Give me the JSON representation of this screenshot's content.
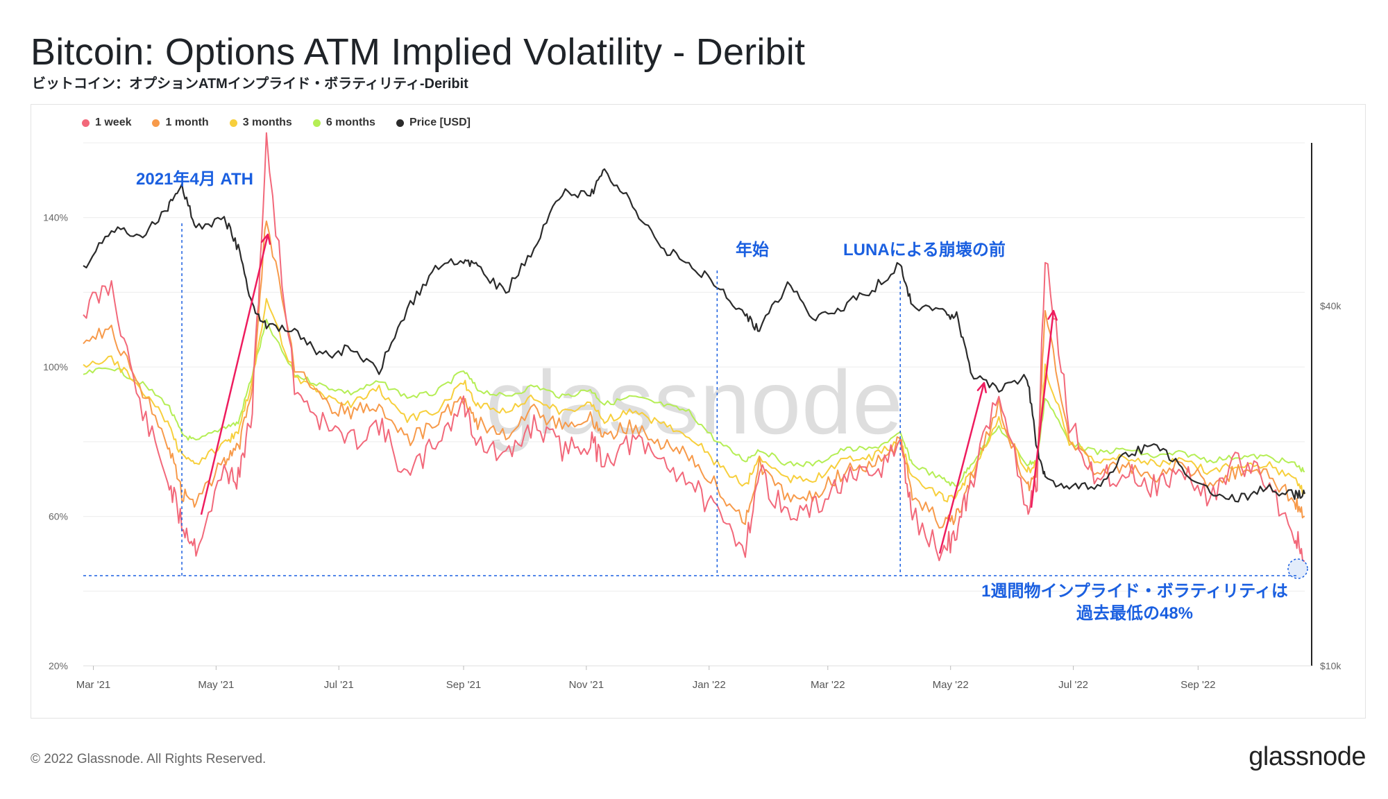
{
  "header": {
    "title": "Bitcoin: Options ATM Implied Volatility - Deribit",
    "subtitle": "ビットコイン：オプションATMインプライド・ボラティリティ-Deribit"
  },
  "footer": {
    "copyright": "© 2022 Glassnode. All Rights Reserved.",
    "brand": "glassnode",
    "watermark": "glassnode"
  },
  "annotations": {
    "ath": "2021年4月 ATH",
    "new_year": "年始",
    "luna": "LUNAによる崩壊の前",
    "low_line1": "1週間物インプライド・ボラティリティは",
    "low_line2": "過去最低の48%"
  },
  "colors": {
    "w1": "#f2687a",
    "m1": "#f79a4a",
    "m3": "#f7cf3c",
    "m6": "#b5ee55",
    "price": "#2b2b2b",
    "annotation": "#1a5fe0",
    "arrow": "#ee1c5e"
  },
  "chart_data": {
    "type": "line",
    "legend": [
      "1 week",
      "1 month",
      "3 months",
      "6 months",
      "Price [USD]"
    ],
    "legend_position": "top-left",
    "x_ticks": [
      "Mar '21",
      "May '21",
      "Jul '21",
      "Sep '21",
      "Nov '21",
      "Jan '22",
      "Mar '22",
      "May '22",
      "Jul '22",
      "Sep '22"
    ],
    "y_left_ticks": [
      "20%",
      "60%",
      "100%",
      "140%"
    ],
    "y_left_range": [
      20,
      160
    ],
    "y_right_ticks": [
      "$10k",
      "$40k"
    ],
    "y_right_scale": "log",
    "y_right_range": [
      10000,
      75000
    ],
    "grid": true,
    "x": [
      "2021-02-24",
      "2021-03-10",
      "2021-03-24",
      "2021-04-07",
      "2021-04-14",
      "2021-04-21",
      "2021-05-05",
      "2021-05-12",
      "2021-05-19",
      "2021-05-26",
      "2021-06-09",
      "2021-06-23",
      "2021-07-07",
      "2021-07-21",
      "2021-08-04",
      "2021-08-18",
      "2021-09-01",
      "2021-09-08",
      "2021-09-22",
      "2021-10-06",
      "2021-10-20",
      "2021-11-03",
      "2021-11-10",
      "2021-11-24",
      "2021-12-08",
      "2021-12-22",
      "2022-01-05",
      "2022-01-19",
      "2022-01-26",
      "2022-02-09",
      "2022-02-23",
      "2022-03-09",
      "2022-03-23",
      "2022-04-06",
      "2022-04-12",
      "2022-04-27",
      "2022-05-04",
      "2022-05-11",
      "2022-05-25",
      "2022-06-08",
      "2022-06-13",
      "2022-06-17",
      "2022-06-29",
      "2022-07-13",
      "2022-07-27",
      "2022-08-10",
      "2022-08-24",
      "2022-09-07",
      "2022-09-21",
      "2022-10-05",
      "2022-10-19",
      "2022-10-24"
    ],
    "series": [
      {
        "name": "1 week",
        "values": [
          115,
          122,
          90,
          70,
          58,
          52,
          72,
          70,
          88,
          160,
          95,
          85,
          80,
          85,
          70,
          80,
          90,
          80,
          75,
          85,
          78,
          80,
          75,
          80,
          75,
          70,
          60,
          52,
          72,
          60,
          62,
          70,
          70,
          80,
          60,
          50,
          56,
          68,
          95,
          60,
          70,
          130,
          85,
          70,
          72,
          68,
          72,
          65,
          75,
          70,
          55,
          48
        ]
      },
      {
        "name": "1 month",
        "values": [
          108,
          110,
          95,
          80,
          66,
          64,
          75,
          78,
          95,
          140,
          100,
          90,
          88,
          90,
          80,
          85,
          92,
          85,
          82,
          88,
          84,
          86,
          82,
          84,
          80,
          76,
          68,
          58,
          74,
          65,
          66,
          72,
          74,
          80,
          66,
          58,
          60,
          70,
          90,
          68,
          72,
          115,
          82,
          72,
          74,
          70,
          74,
          69,
          72,
          72,
          64,
          60
        ]
      },
      {
        "name": "3 months",
        "values": [
          100,
          102,
          95,
          85,
          76,
          74,
          80,
          82,
          97,
          118,
          98,
          92,
          90,
          94,
          86,
          88,
          96,
          90,
          88,
          92,
          88,
          90,
          86,
          88,
          85,
          82,
          74,
          68,
          76,
          70,
          70,
          75,
          76,
          80,
          70,
          65,
          65,
          72,
          86,
          72,
          74,
          100,
          80,
          75,
          76,
          74,
          75,
          72,
          74,
          74,
          70,
          66
        ]
      },
      {
        "name": "6 months",
        "values": [
          98,
          100,
          96,
          90,
          82,
          80,
          84,
          85,
          98,
          112,
          98,
          95,
          93,
          96,
          92,
          93,
          99,
          94,
          92,
          95,
          92,
          94,
          90,
          92,
          90,
          88,
          80,
          75,
          78,
          74,
          74,
          78,
          78,
          82,
          74,
          70,
          68,
          74,
          84,
          74,
          75,
          92,
          80,
          77,
          78,
          76,
          77,
          75,
          76,
          76,
          74,
          72
        ]
      },
      {
        "name": "Price [USD]",
        "values": [
          46000,
          54000,
          52000,
          58000,
          63500,
          54000,
          56000,
          50000,
          40000,
          37000,
          36000,
          33000,
          34000,
          31000,
          39500,
          46000,
          48000,
          46500,
          42000,
          50000,
          62000,
          61500,
          67000,
          59000,
          50000,
          47500,
          43000,
          38500,
          36500,
          43500,
          38000,
          40000,
          42500,
          47000,
          40000,
          39000,
          38500,
          31000,
          29000,
          30500,
          23000,
          20500,
          20000,
          20000,
          22500,
          23500,
          21500,
          19500,
          19000,
          19800,
          19300,
          19400
        ]
      }
    ]
  }
}
